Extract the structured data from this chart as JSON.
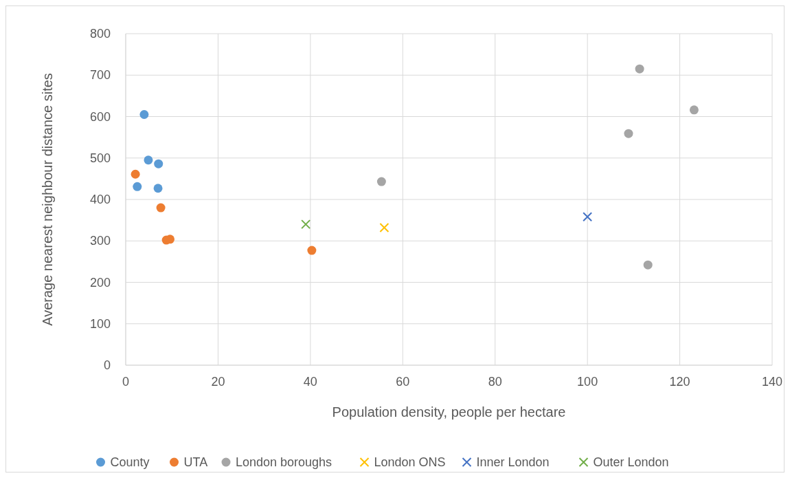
{
  "chart_data": {
    "type": "scatter",
    "xlabel": "Population density, people per hectare",
    "ylabel": "Average nearest neighbour distance sites",
    "xlim": [
      0,
      140
    ],
    "xticks": [
      0,
      20,
      40,
      60,
      80,
      100,
      120,
      140
    ],
    "ylim": [
      0,
      800
    ],
    "yticks": [
      0,
      100,
      200,
      300,
      400,
      500,
      600,
      700,
      800
    ],
    "grid": true,
    "legend": "bottom",
    "series": [
      {
        "name": "County",
        "color": "#5b9bd5",
        "marker": "circle",
        "x": [
          4.0,
          4.9,
          7.1,
          2.5,
          7.0
        ],
        "values": [
          605,
          495,
          486,
          431,
          427
        ]
      },
      {
        "name": "UTA",
        "color": "#ed7d31",
        "marker": "circle",
        "x": [
          2.1,
          7.6,
          8.8,
          9.6,
          40.3
        ],
        "values": [
          461,
          380,
          302,
          304,
          277
        ]
      },
      {
        "name": "London boroughs",
        "color": "#a5a5a5",
        "marker": "circle",
        "x": [
          55.4,
          111.3,
          108.9,
          123.1,
          113.1
        ],
        "values": [
          443,
          715,
          559,
          616,
          242
        ]
      },
      {
        "name": "London ONS",
        "color": "#ffc000",
        "marker": "cross",
        "x": [
          56.0
        ],
        "values": [
          332
        ]
      },
      {
        "name": "Inner London",
        "color": "#4472c4",
        "marker": "cross",
        "x": [
          100
        ],
        "values": [
          358
        ]
      },
      {
        "name": "Outer London",
        "color": "#70ad47",
        "marker": "cross",
        "x": [
          39.0
        ],
        "values": [
          340
        ]
      }
    ]
  }
}
